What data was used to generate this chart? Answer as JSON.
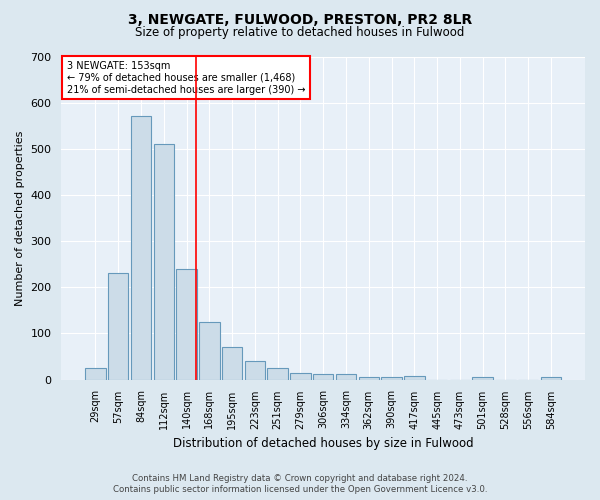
{
  "title": "3, NEWGATE, FULWOOD, PRESTON, PR2 8LR",
  "subtitle": "Size of property relative to detached houses in Fulwood",
  "xlabel": "Distribution of detached houses by size in Fulwood",
  "ylabel": "Number of detached properties",
  "categories": [
    "29sqm",
    "57sqm",
    "84sqm",
    "112sqm",
    "140sqm",
    "168sqm",
    "195sqm",
    "223sqm",
    "251sqm",
    "279sqm",
    "306sqm",
    "334sqm",
    "362sqm",
    "390sqm",
    "417sqm",
    "445sqm",
    "473sqm",
    "501sqm",
    "528sqm",
    "556sqm",
    "584sqm"
  ],
  "values": [
    25,
    230,
    570,
    510,
    240,
    125,
    70,
    40,
    25,
    14,
    11,
    11,
    5,
    5,
    7,
    0,
    0,
    5,
    0,
    0,
    5
  ],
  "bar_color": "#ccdce8",
  "bar_edge_color": "#6699bb",
  "red_line_x": 4.42,
  "annotation_line1": "3 NEWGATE: 153sqm",
  "annotation_line2": "← 79% of detached houses are smaller (1,468)",
  "annotation_line3": "21% of semi-detached houses are larger (390) →",
  "ylim": [
    0,
    700
  ],
  "yticks": [
    0,
    100,
    200,
    300,
    400,
    500,
    600,
    700
  ],
  "footer_line1": "Contains HM Land Registry data © Crown copyright and database right 2024.",
  "footer_line2": "Contains public sector information licensed under the Open Government Licence v3.0.",
  "background_color": "#dce8f0",
  "plot_background_color": "#e8f0f8"
}
